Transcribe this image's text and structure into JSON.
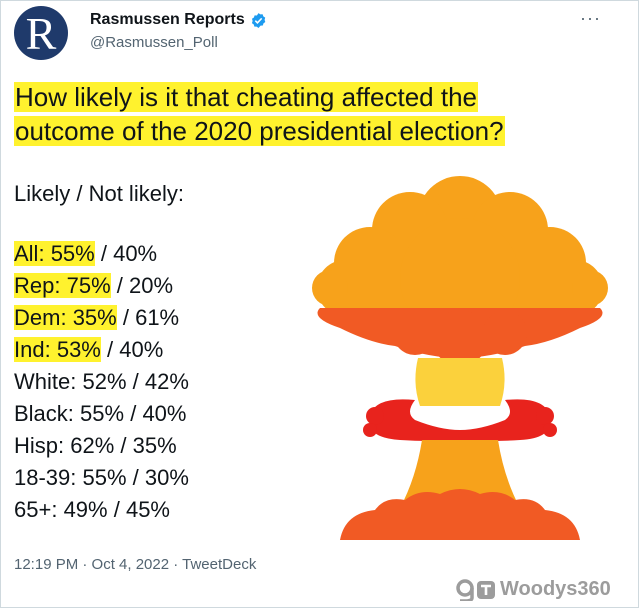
{
  "tweet": {
    "author_name": "Rasmussen Reports",
    "handle": "@Rasmussen_Poll",
    "avatar_letter": "R",
    "more_label": "···",
    "question_line1": "How likely is it that cheating affected the",
    "question_line2": "outcome of the 2020 presidential election?",
    "subheading": "Likely / Not likely:",
    "timestamp": "12:19 PM · Oct 4, 2022 · TweetDeck"
  },
  "results": [
    {
      "group": "All:",
      "likely": "55%",
      "not_likely": "40%",
      "highlight": true
    },
    {
      "group": "Rep:",
      "likely": "75%",
      "not_likely": "20%",
      "highlight": true
    },
    {
      "group": "Dem:",
      "likely": "35%",
      "not_likely": "61%",
      "highlight": true
    },
    {
      "group": "Ind:",
      "likely": "53%",
      "not_likely": "40%",
      "highlight": true
    },
    {
      "group": "White:",
      "likely": "52%",
      "not_likely": "42%",
      "highlight": false
    },
    {
      "group": "Black:",
      "likely": "55%",
      "not_likely": "40%",
      "highlight": false
    },
    {
      "group": "Hisp:",
      "likely": "62%",
      "not_likely": "35%",
      "highlight": false
    },
    {
      "group": "18-39:",
      "likely": "55%",
      "not_likely": "30%",
      "highlight": false
    },
    {
      "group": "65+:",
      "likely": "49%",
      "not_likely": "45%",
      "highlight": false
    }
  ],
  "watermark": {
    "text": "Woodys360"
  },
  "colors": {
    "highlight": "#fff22e",
    "avatar_bg": "#1f3a6b",
    "verified": "#1d9bf0",
    "cloud_orange": "#f7a21b",
    "cloud_red_orange": "#f15a24",
    "cloud_yellow": "#fbd13c",
    "cloud_red": "#e8231d"
  },
  "icons": [
    "verified-badge-icon",
    "more-options-icon",
    "mushroom-cloud-icon",
    "watermark-logo-icon"
  ]
}
